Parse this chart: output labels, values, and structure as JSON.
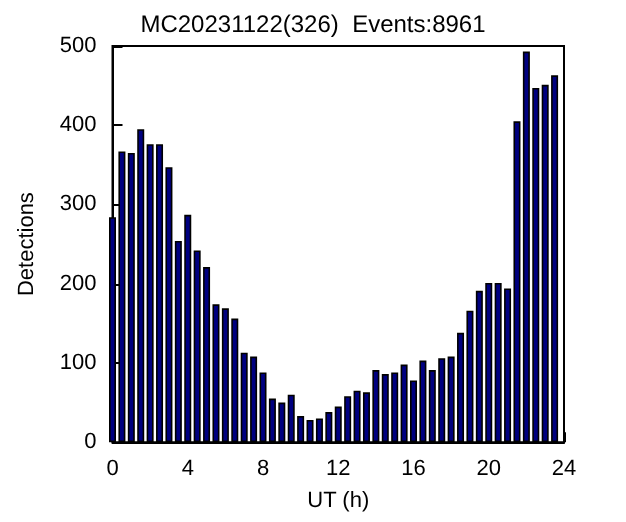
{
  "chart_data": {
    "type": "bar",
    "title": "MC20231122(326)  Events:8961",
    "xlabel": "UT (h)",
    "ylabel": "Detections",
    "x": [
      0,
      0.5,
      1,
      1.5,
      2,
      2.5,
      3,
      3.5,
      4,
      4.5,
      5,
      5.5,
      6,
      6.5,
      7,
      7.5,
      8,
      8.5,
      9,
      9.5,
      10,
      10.5,
      11,
      11.5,
      12,
      12.5,
      13,
      13.5,
      14,
      14.5,
      15,
      15.5,
      16,
      16.5,
      17,
      17.5,
      18,
      18.5,
      19,
      19.5,
      20,
      20.5,
      21,
      21.5,
      22,
      22.5,
      23,
      23.5
    ],
    "values": [
      284,
      367,
      365,
      395,
      376,
      376,
      347,
      254,
      287,
      242,
      221,
      174,
      169,
      156,
      113,
      108,
      88,
      55,
      50,
      60,
      33,
      28,
      30,
      38,
      45,
      58,
      65,
      63,
      91,
      86,
      88,
      98,
      78,
      103,
      91,
      106,
      108,
      138,
      166,
      191,
      201,
      201,
      194,
      405,
      493,
      447,
      451,
      463
    ],
    "color": "#000080",
    "xlim": [
      0,
      24
    ],
    "xticks": [
      0,
      4,
      8,
      12,
      16,
      20,
      24
    ],
    "ylim": [
      0,
      500
    ],
    "yticks": [
      0,
      100,
      200,
      300,
      400,
      500
    ]
  }
}
